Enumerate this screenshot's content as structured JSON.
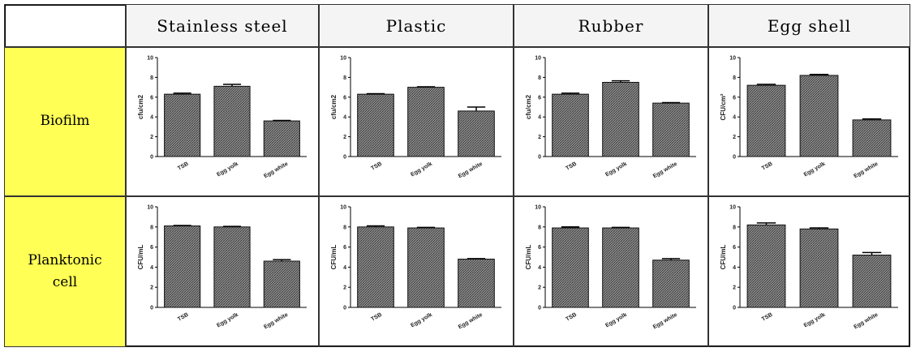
{
  "table": {
    "columns": [
      "Stainless steel",
      "Plastic",
      "Rubber",
      "Egg shell"
    ],
    "rows": [
      {
        "label": "Biofilm",
        "charts": [
          {
            "type": "bar",
            "ylabel": "cfu/cm2",
            "categories": [
              "TSB",
              "Egg yolk",
              "Egg white"
            ],
            "values": [
              6.3,
              7.1,
              3.6
            ],
            "errors": [
              0.1,
              0.2,
              0.05
            ],
            "ylim": [
              0,
              10
            ],
            "yticks": [
              0,
              2,
              4,
              6,
              8,
              10
            ]
          },
          {
            "type": "bar",
            "ylabel": "cfu/cm2",
            "categories": [
              "TSB",
              "Egg yolk",
              "Egg white"
            ],
            "values": [
              6.3,
              7.0,
              4.6
            ],
            "errors": [
              0.05,
              0.05,
              0.4
            ],
            "ylim": [
              0,
              10
            ],
            "yticks": [
              0,
              2,
              4,
              6,
              8,
              10
            ]
          },
          {
            "type": "bar",
            "ylabel": "cfu/cm2",
            "categories": [
              "TSB",
              "Egg yolk",
              "Egg white"
            ],
            "values": [
              6.3,
              7.5,
              5.4
            ],
            "errors": [
              0.1,
              0.15,
              0.05
            ],
            "ylim": [
              0,
              10
            ],
            "yticks": [
              0,
              2,
              4,
              6,
              8,
              10
            ]
          },
          {
            "type": "bar",
            "ylabel": "CFU/cm²",
            "categories": [
              "TSB",
              "Egg yolk",
              "Egg white"
            ],
            "values": [
              7.2,
              8.2,
              3.7
            ],
            "errors": [
              0.1,
              0.1,
              0.1
            ],
            "ylim": [
              0,
              10
            ],
            "yticks": [
              0,
              2,
              4,
              6,
              8,
              10
            ]
          }
        ]
      },
      {
        "label": "Planktonic cell",
        "charts": [
          {
            "type": "bar",
            "ylabel": "CFU/mL",
            "categories": [
              "TSB",
              "Egg yolk",
              "Egg white"
            ],
            "values": [
              8.1,
              8.0,
              4.6
            ],
            "errors": [
              0.05,
              0.05,
              0.15
            ],
            "ylim": [
              0,
              10
            ],
            "yticks": [
              0,
              2,
              4,
              6,
              8,
              10
            ]
          },
          {
            "type": "bar",
            "ylabel": "CFU/mL",
            "categories": [
              "TSB",
              "Egg yolk",
              "Egg white"
            ],
            "values": [
              8.0,
              7.9,
              4.8
            ],
            "errors": [
              0.1,
              0.05,
              0.05
            ],
            "ylim": [
              0,
              10
            ],
            "yticks": [
              0,
              2,
              4,
              6,
              8,
              10
            ]
          },
          {
            "type": "bar",
            "ylabel": "CFU/mL",
            "categories": [
              "TSB",
              "Egg yolk",
              "Egg white"
            ],
            "values": [
              7.9,
              7.9,
              4.7
            ],
            "errors": [
              0.1,
              0.05,
              0.15
            ],
            "ylim": [
              0,
              10
            ],
            "yticks": [
              0,
              2,
              4,
              6,
              8,
              10
            ]
          },
          {
            "type": "bar",
            "ylabel": "CFU/mL",
            "categories": [
              "TSB",
              "Egg yolk",
              "Egg white"
            ],
            "values": [
              8.2,
              7.8,
              5.2
            ],
            "errors": [
              0.2,
              0.1,
              0.25
            ],
            "ylim": [
              0,
              10
            ],
            "yticks": [
              0,
              2,
              4,
              6,
              8,
              10
            ]
          }
        ]
      }
    ]
  }
}
